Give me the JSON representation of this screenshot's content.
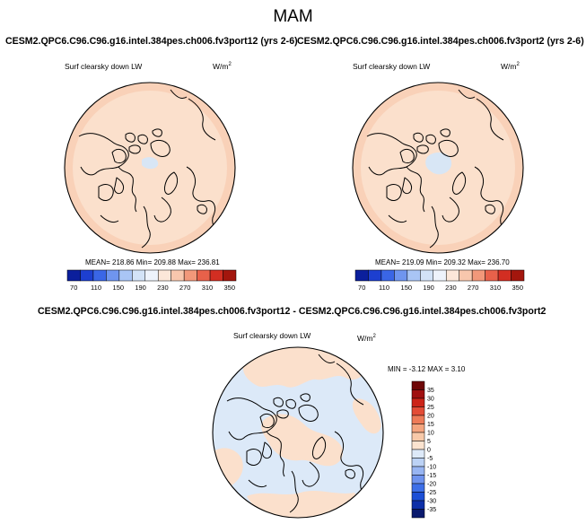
{
  "suptitle": "MAM",
  "panels": [
    {
      "title": "CESM2.QPC6.C96.C96.g16.intel.384pes.ch006.fv3port12 (yrs 2-6)",
      "variable": "Surf clearsky down LW",
      "units_base": "W/m",
      "units_exp": "2",
      "stats": "MEAN= 218.86  Min= 209.88  Max= 236.81"
    },
    {
      "title": "CESM2.QPC6.C96.C96.g16.intel.384pes.ch006.fv3port2 (yrs 2-6)",
      "variable": "Surf clearsky down LW",
      "units_base": "W/m",
      "units_exp": "2",
      "stats": "MEAN= 219.09  Min= 209.32  Max= 236.70"
    },
    {
      "title": "CESM2.QPC6.C96.C96.g16.intel.384pes.ch006.fv3port12 - CESM2.QPC6.C96.C96.g16.intel.384pes.ch006.fv3port2",
      "variable": "Surf clearsky down LW",
      "units_base": "W/m",
      "units_exp": "2",
      "stats": "MIN =  -3.12 MAX =   3.10"
    }
  ],
  "chart_data": [
    {
      "type": "heatmap",
      "projection": "north polar stereographic",
      "title": "CESM2.QPC6.C96.C96.g16.intel.384pes.ch006.fv3port12 (yrs 2-6)",
      "variable": "Surf clearsky down LW",
      "units": "W/m2",
      "mean": 218.86,
      "min": 209.88,
      "max": 236.81,
      "colorbar_levels": [
        70,
        110,
        150,
        190,
        230,
        270,
        310,
        350
      ],
      "colorbar_colors": [
        "#0b1f9c",
        "#1d3fd0",
        "#3a66e6",
        "#6f95ef",
        "#a9c5f5",
        "#d3e3f7",
        "#eef3fb",
        "#fce7d9",
        "#f8c7ad",
        "#f2987a",
        "#e8614a",
        "#d22e22",
        "#a3160d"
      ],
      "dominant_fill": "#fbe0cc",
      "outer_ring_fill": "#f9d1b8",
      "low_patch_fill": "#d8e6f5"
    },
    {
      "type": "heatmap",
      "projection": "north polar stereographic",
      "title": "CESM2.QPC6.C96.C96.g16.intel.384pes.ch006.fv3port2 (yrs 2-6)",
      "variable": "Surf clearsky down LW",
      "units": "W/m2",
      "mean": 219.09,
      "min": 209.32,
      "max": 236.7,
      "colorbar_levels": [
        70,
        110,
        150,
        190,
        230,
        270,
        310,
        350
      ],
      "colorbar_colors": [
        "#0b1f9c",
        "#1d3fd0",
        "#3a66e6",
        "#6f95ef",
        "#a9c5f5",
        "#d3e3f7",
        "#eef3fb",
        "#fce7d9",
        "#f8c7ad",
        "#f2987a",
        "#e8614a",
        "#d22e22",
        "#a3160d"
      ],
      "dominant_fill": "#fbe0cc",
      "outer_ring_fill": "#f9d1b8",
      "low_patch_fill": "#d8e6f5"
    },
    {
      "type": "heatmap",
      "projection": "north polar stereographic",
      "title": "CESM2.QPC6.C96.C96.g16.intel.384pes.ch006.fv3port12 - CESM2.QPC6.C96.C96.g16.intel.384pes.ch006.fv3port2",
      "variable": "Surf clearsky down LW",
      "units": "W/m2",
      "min": -3.12,
      "max": 3.1,
      "colorbar_levels": [
        -35,
        -30,
        -25,
        -20,
        -15,
        -10,
        -5,
        0,
        5,
        10,
        15,
        20,
        25,
        30,
        35
      ],
      "colorbar_colors": [
        "#0a1a6e",
        "#0d2fa8",
        "#1c4fd6",
        "#3d6fe8",
        "#6f93ee",
        "#98b5f2",
        "#bcd2f5",
        "#dde9f8",
        "#fbe3cf",
        "#f8c9a9",
        "#f4a57f",
        "#ee7b58",
        "#e34c36",
        "#cc2418",
        "#a01010",
        "#6e0707"
      ],
      "positive_fill": "#fbe0cc",
      "negative_fill": "#dce9f8"
    }
  ]
}
